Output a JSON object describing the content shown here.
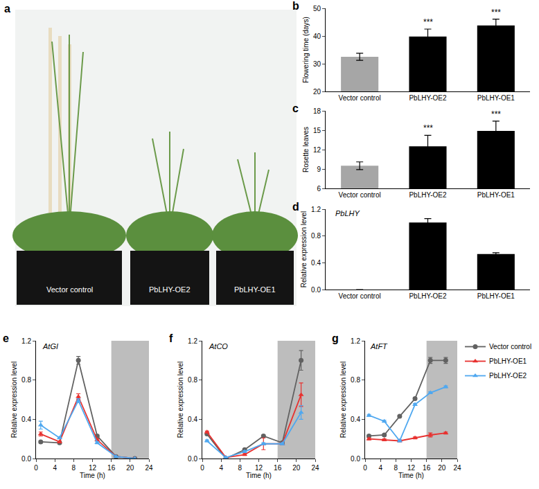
{
  "chart_data": [
    {
      "panel": "a",
      "type": "image",
      "labels": [
        "Vector control",
        "PbLHY-OE2",
        "PbLHY-OE1"
      ]
    },
    {
      "panel": "b",
      "type": "bar",
      "y_label": "Flowering time (days)",
      "categories": [
        "Vector control",
        "PbLHY-OE2",
        "PbLHY-OE1"
      ],
      "values": [
        32.5,
        39.8,
        43.8
      ],
      "errors": [
        1.3,
        2.7,
        2.3
      ],
      "colors": [
        "#a6a6a6",
        "#000000",
        "#000000"
      ],
      "ylim": [
        20,
        50
      ],
      "yticks": [
        20,
        30,
        40,
        50
      ],
      "annotations": [
        {
          "category": "PbLHY-OE2",
          "text": "***"
        },
        {
          "category": "PbLHY-OE1",
          "text": "***"
        }
      ]
    },
    {
      "panel": "c",
      "type": "bar",
      "y_label": "Rosette leaves",
      "categories": [
        "Vector control",
        "PbLHY-OE2",
        "PbLHY-OE1"
      ],
      "values": [
        9.5,
        12.5,
        14.9
      ],
      "errors": [
        0.6,
        1.7,
        1.5
      ],
      "colors": [
        "#a6a6a6",
        "#000000",
        "#000000"
      ],
      "ylim": [
        6,
        18
      ],
      "yticks": [
        6,
        9,
        12,
        15,
        18
      ],
      "annotations": [
        {
          "category": "PbLHY-OE2",
          "text": "***"
        },
        {
          "category": "PbLHY-OE1",
          "text": "***"
        }
      ]
    },
    {
      "panel": "d",
      "type": "bar",
      "title": "PbLHY",
      "y_label": "Relative expression level",
      "categories": [
        "Vector control",
        "PbLHY-OE2",
        "PbLHY-OE1"
      ],
      "values": [
        0,
        1.0,
        0.53
      ],
      "errors": [
        0,
        0.06,
        0.02
      ],
      "colors": [
        "#a6a6a6",
        "#000000",
        "#000000"
      ],
      "ylim": [
        0,
        1.2
      ],
      "yticks": [
        {
          "value": 0,
          "label": "0.0"
        },
        0.4,
        0.8,
        1.2
      ]
    },
    {
      "panel": "e",
      "type": "line",
      "title": "AtGI",
      "x_label": "Time (h)",
      "y_label": "Relative expression level",
      "x": [
        1,
        5,
        9,
        13,
        17,
        21
      ],
      "series": [
        {
          "name": "Vector control",
          "color": "#616161",
          "marker": "circle",
          "values": [
            0.17,
            0.16,
            1.0,
            0.23,
            0.02,
            0.0
          ],
          "errors": [
            0.01,
            0.01,
            0.04,
            0.01,
            0.0,
            0.0
          ]
        },
        {
          "name": "PbLHY-OE1",
          "color": "#e8312f",
          "marker": "triangle-up",
          "values": [
            0.25,
            0.17,
            0.63,
            0.19,
            0.02,
            0.0
          ],
          "errors": [
            0.02,
            0.01,
            0.03,
            0.01,
            0.0,
            0.0
          ]
        },
        {
          "name": "PbLHY-OE2",
          "color": "#4fa8f0",
          "marker": "triangle-up",
          "values": [
            0.34,
            0.21,
            0.59,
            0.16,
            0.02,
            0.0
          ],
          "errors": [
            0.04,
            0.01,
            0.02,
            0.01,
            0.0,
            0.0
          ]
        }
      ],
      "xlim": [
        0,
        24
      ],
      "xticks": [
        0,
        4,
        8,
        12,
        16,
        20,
        24
      ],
      "ylim": [
        0,
        1.2
      ],
      "yticks": [
        {
          "value": 0,
          "label": "0.0"
        },
        0.4,
        0.8,
        1.2
      ],
      "dark_period": [
        16,
        24
      ]
    },
    {
      "panel": "f",
      "type": "line",
      "title": "AtCO",
      "x_label": "Time (h)",
      "y_label": "Relative expression level",
      "x": [
        1,
        5,
        9,
        13,
        17,
        21
      ],
      "series": [
        {
          "name": "Vector control",
          "color": "#616161",
          "marker": "circle",
          "values": [
            0.25,
            0.0,
            0.09,
            0.23,
            0.16,
            1.0
          ],
          "errors": [
            0.01,
            0.0,
            0.01,
            0.01,
            0.01,
            0.1
          ]
        },
        {
          "name": "PbLHY-OE1",
          "color": "#e8312f",
          "marker": "triangle-up",
          "values": [
            0.27,
            0.01,
            0.04,
            0.15,
            0.15,
            0.65
          ],
          "errors": [
            0.01,
            0.0,
            0.01,
            0.06,
            0.01,
            0.12
          ]
        },
        {
          "name": "PbLHY-OE2",
          "color": "#4fa8f0",
          "marker": "triangle-up",
          "values": [
            0.18,
            0.01,
            0.07,
            0.15,
            0.15,
            0.47
          ],
          "errors": [
            0.01,
            0.0,
            0.01,
            0.01,
            0.01,
            0.07
          ]
        }
      ],
      "xlim": [
        0,
        24
      ],
      "xticks": [
        0,
        4,
        8,
        12,
        16,
        20,
        24
      ],
      "ylim": [
        0,
        1.2
      ],
      "yticks": [
        {
          "value": 0,
          "label": "0.0"
        },
        0.4,
        0.8,
        1.2
      ],
      "dark_period": [
        16,
        24
      ]
    },
    {
      "panel": "g",
      "type": "line",
      "title": "AtFT",
      "x_label": "Time (h)",
      "y_label": "Relative expression level",
      "x": [
        1,
        5,
        9,
        13,
        17,
        21
      ],
      "series": [
        {
          "name": "Vector control",
          "color": "#616161",
          "marker": "circle",
          "values": [
            0.23,
            0.24,
            0.43,
            0.61,
            1.0,
            1.0
          ],
          "errors": [
            0.01,
            0.01,
            0.01,
            0.01,
            0.03,
            0.03
          ]
        },
        {
          "name": "PbLHY-OE1",
          "color": "#e8312f",
          "marker": "triangle-up",
          "values": [
            0.2,
            0.19,
            0.18,
            0.21,
            0.24,
            0.26
          ],
          "errors": [
            0.01,
            0.01,
            0.01,
            0.01,
            0.02,
            0.01
          ]
        },
        {
          "name": "PbLHY-OE2",
          "color": "#4fa8f0",
          "marker": "triangle-up",
          "values": [
            0.44,
            0.38,
            0.18,
            0.55,
            0.67,
            0.73
          ],
          "errors": [
            0.01,
            0.01,
            0.01,
            0.01,
            0.01,
            0.01
          ]
        }
      ],
      "xlim": [
        0,
        24
      ],
      "xticks": [
        0,
        4,
        8,
        12,
        16,
        20,
        24
      ],
      "ylim": [
        0,
        1.2
      ],
      "yticks": [
        {
          "value": 0,
          "label": "0.0"
        },
        0.4,
        0.8,
        1.2
      ],
      "dark_period": [
        16,
        24
      ],
      "legend": "right"
    }
  ]
}
